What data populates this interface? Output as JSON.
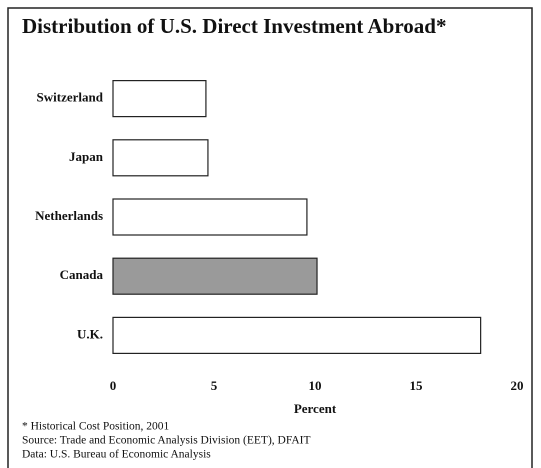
{
  "chart_data": {
    "type": "barh",
    "title": "Distribution of U.S. Direct Investment Abroad*",
    "categories": [
      "Switzerland",
      "Japan",
      "Netherlands",
      "Canada",
      "U.K."
    ],
    "values": [
      4.6,
      4.7,
      9.6,
      10.1,
      18.2
    ],
    "colors": [
      "#ffffff",
      "#ffffff",
      "#ffffff",
      "#9a9a9a",
      "#ffffff"
    ],
    "xlabel": "Percent",
    "xlim": [
      0,
      20
    ],
    "xticks": [
      0,
      5,
      10,
      15,
      20
    ],
    "notes": [
      "* Historical Cost Position, 2001",
      "Source: Trade and Economic Analysis Division (EET), DFAIT",
      "Data: U.S. Bureau of Economic Analysis"
    ]
  }
}
